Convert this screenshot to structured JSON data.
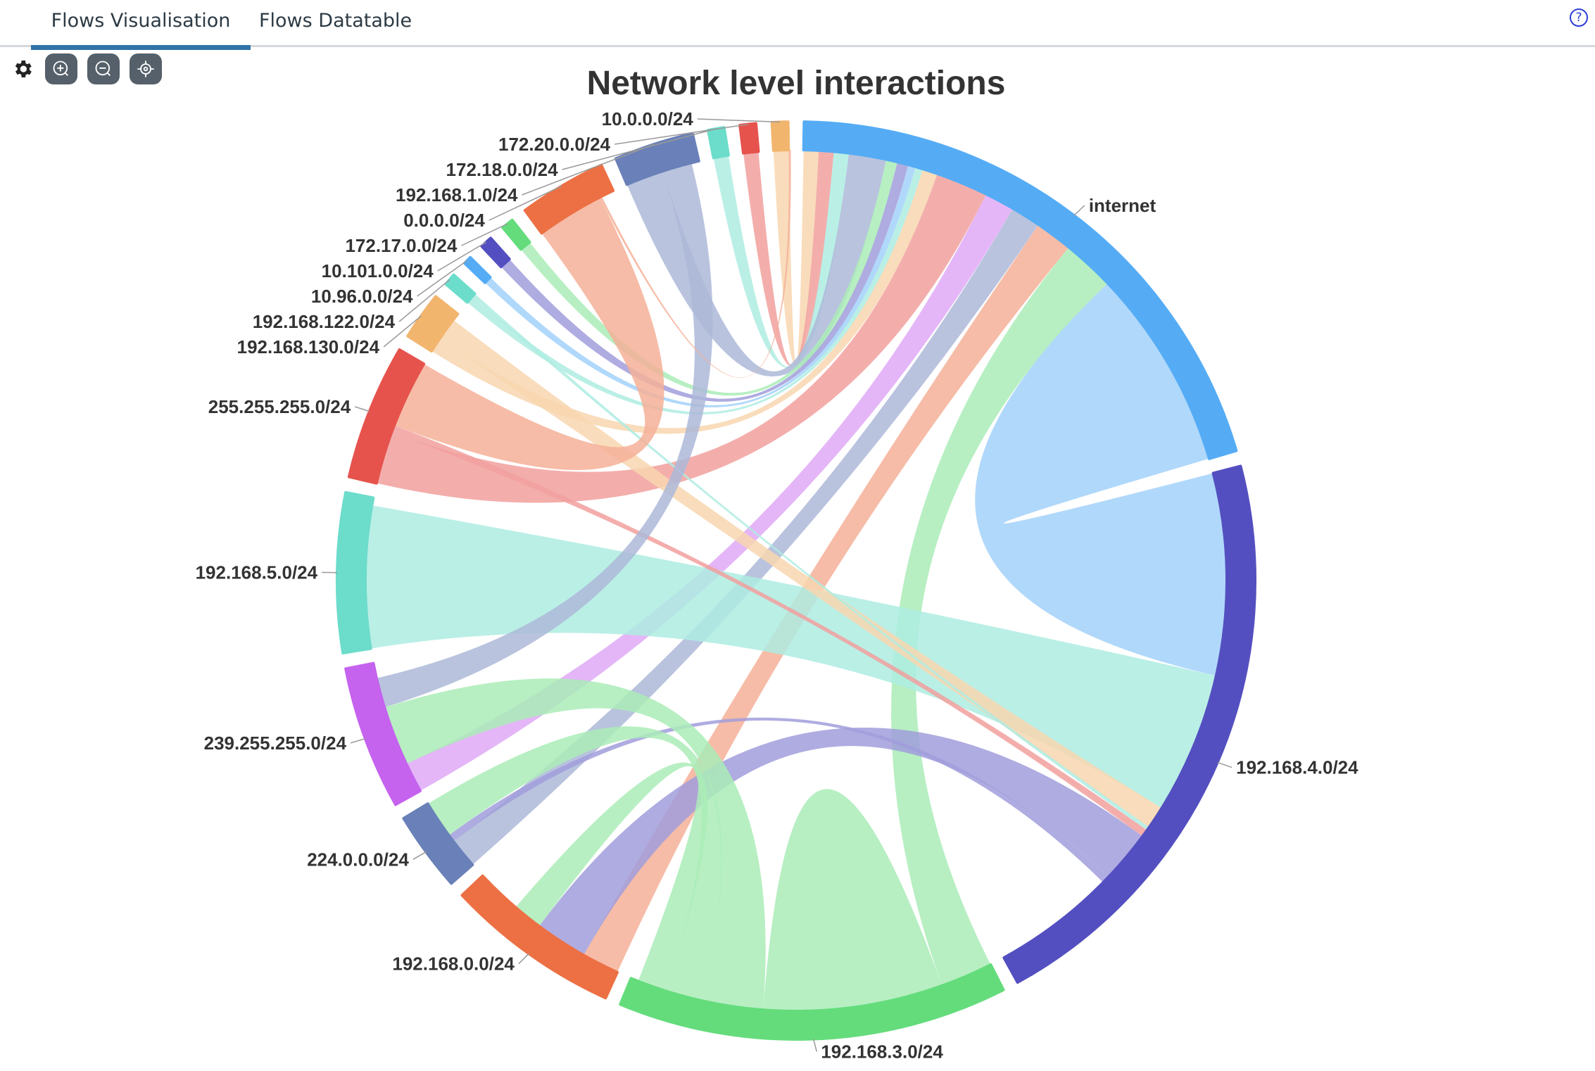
{
  "tabs": [
    {
      "label": "Flows Visualisation",
      "active": true
    },
    {
      "label": "Flows Datatable",
      "active": false
    }
  ],
  "help_icon": "?",
  "toolbar": {
    "icons": [
      "gear-icon",
      "zoom-in-icon",
      "zoom-out-icon",
      "recenter-icon"
    ]
  },
  "chart_data": {
    "type": "chord",
    "title": "Network level interactions",
    "groups": [
      {
        "name": "internet",
        "value": 72,
        "color": "#55acf5"
      },
      {
        "name": "192.168.4.0/24",
        "value": 75,
        "color": "#544fc0"
      },
      {
        "name": "192.168.3.0/24",
        "value": 49,
        "color": "#64dc7c"
      },
      {
        "name": "192.168.0.0/24",
        "value": 22,
        "color": "#ec7044"
      },
      {
        "name": "224.0.0.0/24",
        "value": 10,
        "color": "#6a80b8"
      },
      {
        "name": "239.255.255.0/24",
        "value": 18,
        "color": "#c562ee"
      },
      {
        "name": "192.168.5.0/24",
        "value": 20,
        "color": "#6cdccb"
      },
      {
        "name": "255.255.255.0/24",
        "value": 17,
        "color": "#e6534d"
      },
      {
        "name": "192.168.130.0/24",
        "value": 6,
        "color": "#f2b56e"
      },
      {
        "name": "192.168.122.0/24",
        "value": 1.5,
        "color": "#6cdccb"
      },
      {
        "name": "10.96.0.0/24",
        "value": 1,
        "color": "#55acf5"
      },
      {
        "name": "10.101.0.0/24",
        "value": 1.5,
        "color": "#544fc0"
      },
      {
        "name": "172.17.0.0/24",
        "value": 1.5,
        "color": "#64dc7c"
      },
      {
        "name": "0.0.0.0/24",
        "value": 11,
        "color": "#ec7044"
      },
      {
        "name": "192.168.1.0/24",
        "value": 10,
        "color": "#6a80b8"
      },
      {
        "name": "172.18.0.0/24",
        "value": 2,
        "color": "#6cdccb"
      },
      {
        "name": "172.20.0.0/24",
        "value": 2,
        "color": "#e6534d"
      },
      {
        "name": "10.0.0.0/24",
        "value": 2,
        "color": "#f2b56e"
      }
    ],
    "chords": [
      {
        "source": "10.0.0.0/24",
        "target": "internet",
        "value": 2
      },
      {
        "source": "172.20.0.0/24",
        "target": "internet",
        "value": 2
      },
      {
        "source": "172.18.0.0/24",
        "target": "internet",
        "value": 2
      },
      {
        "source": "192.168.1.0/24",
        "target": "internet",
        "value": 5
      },
      {
        "source": "172.17.0.0/24",
        "target": "internet",
        "value": 1.5
      },
      {
        "source": "10.101.0.0/24",
        "target": "internet",
        "value": 1.5
      },
      {
        "source": "10.96.0.0/24",
        "target": "internet",
        "value": 1
      },
      {
        "source": "192.168.122.0/24",
        "target": "internet",
        "value": 1
      },
      {
        "source": "192.168.130.0/24",
        "target": "internet",
        "value": 2
      },
      {
        "source": "255.255.255.0/24",
        "target": "internet",
        "value": 7
      },
      {
        "source": "239.255.255.0/24",
        "target": "internet",
        "value": 4
      },
      {
        "source": "224.0.0.0/24",
        "target": "internet",
        "value": 4
      },
      {
        "source": "192.168.0.0/24",
        "target": "internet",
        "value": 5
      },
      {
        "source": "192.168.3.0/24",
        "target": "internet",
        "value": 7
      },
      {
        "source": "internet",
        "target": "192.168.4.0/24",
        "value": 27
      },
      {
        "source": "192.168.5.0/24",
        "target": "192.168.4.0/24",
        "value": 19
      },
      {
        "source": "192.168.130.0/24",
        "target": "192.168.4.0/24",
        "value": 3
      },
      {
        "source": "192.168.122.0/24",
        "target": "192.168.4.0/24",
        "value": 0.5
      },
      {
        "source": "255.255.255.0/24",
        "target": "192.168.4.0/24",
        "value": 1
      },
      {
        "source": "192.168.4.0/24",
        "target": "192.168.0.0/24",
        "value": 7
      },
      {
        "source": "192.168.4.0/24",
        "target": "224.0.0.0/24",
        "value": 1
      },
      {
        "source": "192.168.3.0/24",
        "target": "192.168.3.0/24",
        "value": 12
      },
      {
        "source": "192.168.3.0/24",
        "target": "239.255.255.0/24",
        "value": 8
      },
      {
        "source": "192.168.3.0/24",
        "target": "224.0.0.0/24",
        "value": 5
      },
      {
        "source": "192.168.3.0/24",
        "target": "192.168.0.0/24",
        "value": 4
      },
      {
        "source": "0.0.0.0/24",
        "target": "255.255.255.0/24",
        "value": 9
      },
      {
        "source": "192.168.1.0/24",
        "target": "239.255.255.0/24",
        "value": 4
      },
      {
        "source": "0.0.0.0/24",
        "target": "10.0.0.0/24",
        "value": 0.3
      }
    ]
  }
}
